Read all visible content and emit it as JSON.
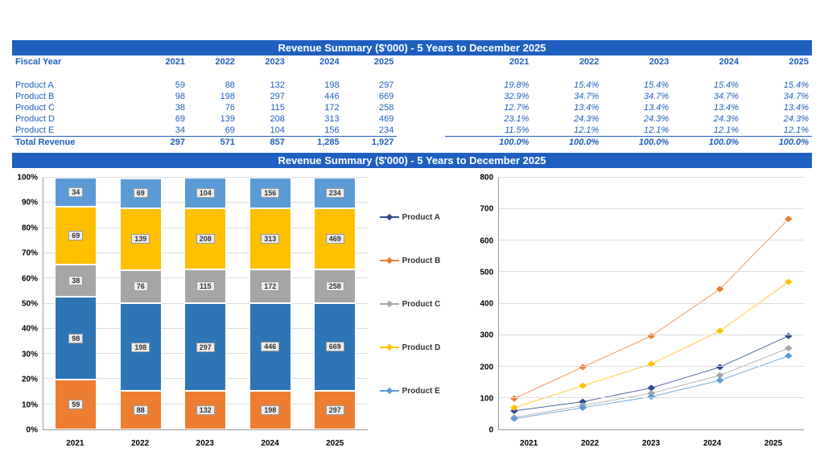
{
  "title": "Revenue Summary ($'000) - 5 Years to December 2025",
  "years": [
    "2021",
    "2022",
    "2023",
    "2024",
    "2025"
  ],
  "fiscal_label": "Fiscal Year",
  "products": [
    "Product A",
    "Product B",
    "Product C",
    "Product D",
    "Product E"
  ],
  "values": {
    "Product A": [
      59,
      88,
      132,
      198,
      297
    ],
    "Product B": [
      98,
      198,
      297,
      446,
      669
    ],
    "Product C": [
      38,
      76,
      115,
      172,
      258
    ],
    "Product D": [
      69,
      139,
      208,
      313,
      469
    ],
    "Product E": [
      34,
      69,
      104,
      156,
      234
    ]
  },
  "totals_label": "Total Revenue",
  "totals": [
    297,
    571,
    857,
    1285,
    1927
  ],
  "totals_fmt": [
    "297",
    "571",
    "857",
    "1,285",
    "1,927"
  ],
  "percents": {
    "Product A": [
      "19.8%",
      "15.4%",
      "15.4%",
      "15.4%",
      "15.4%"
    ],
    "Product B": [
      "32.9%",
      "34.7%",
      "34.7%",
      "34.7%",
      "34.7%"
    ],
    "Product C": [
      "12.7%",
      "13.4%",
      "13.4%",
      "13.4%",
      "13.4%"
    ],
    "Product D": [
      "23.1%",
      "24.3%",
      "24.3%",
      "24.3%",
      "24.3%"
    ],
    "Product E": [
      "11.5%",
      "12.1%",
      "12.1%",
      "12.1%",
      "12.1%"
    ]
  },
  "pct_total": [
    "100.0%",
    "100.0%",
    "100.0%",
    "100.0%",
    "100.0%"
  ],
  "colors": {
    "Product A": "#ed7d31",
    "Product B": "#2e75b6",
    "Product C": "#a6a6a6",
    "Product D": "#ffc000",
    "Product E": "#5b9bd5",
    "title_bar": "#1f5fbf",
    "text": "#1f5fbf"
  },
  "legend_line_colors": {
    "Product A": "#2e4b8c",
    "Product B": "#ed7d31",
    "Product C": "#a6a6a6",
    "Product D": "#ffc000",
    "Product E": "#5b9bd5"
  },
  "stacked_chart": {
    "y_ticks": [
      "0%",
      "10%",
      "20%",
      "30%",
      "40%",
      "50%",
      "60%",
      "70%",
      "80%",
      "90%",
      "100%"
    ],
    "stack_order": [
      "Product A",
      "Product B",
      "Product C",
      "Product D",
      "Product E"
    ]
  },
  "line_chart": {
    "y_max": 800,
    "y_ticks": [
      0,
      100,
      200,
      300,
      400,
      500,
      600,
      700,
      800
    ]
  }
}
